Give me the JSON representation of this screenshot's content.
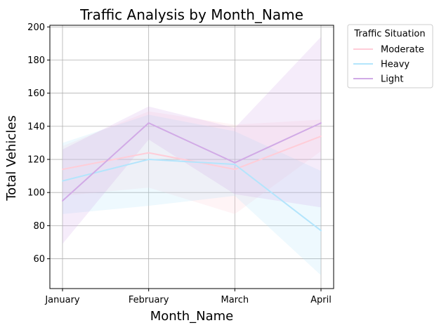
{
  "chart_data": {
    "type": "line",
    "title": "Traffic Analysis by Month_Name",
    "xlabel": "Month_Name",
    "ylabel": "Total Vehicles",
    "categories": [
      "January",
      "February",
      "March",
      "April"
    ],
    "ylim": [
      42,
      201
    ],
    "yticks": [
      60,
      80,
      100,
      120,
      140,
      160,
      180,
      200
    ],
    "grid": true,
    "legend": {
      "title": "Traffic Situation",
      "placement": "outside-top-right"
    },
    "series": [
      {
        "name": "Moderate",
        "color": "#ffcdd8",
        "values": [
          114,
          124,
          114,
          134
        ],
        "ci_low": [
          98,
          103,
          87,
          125
        ],
        "ci_high": [
          128,
          149,
          141,
          144
        ]
      },
      {
        "name": "Heavy",
        "color": "#b3e5fc",
        "values": [
          107,
          120,
          117,
          77
        ],
        "ci_low": [
          87,
          92,
          98,
          50
        ],
        "ci_high": [
          130,
          147,
          137,
          113
        ]
      },
      {
        "name": "Light",
        "color": "#d1aae6",
        "values": [
          95,
          142,
          118,
          142
        ],
        "ci_low": [
          69,
          132,
          99,
          91
        ],
        "ci_high": [
          126,
          152,
          139,
          194
        ]
      }
    ]
  }
}
